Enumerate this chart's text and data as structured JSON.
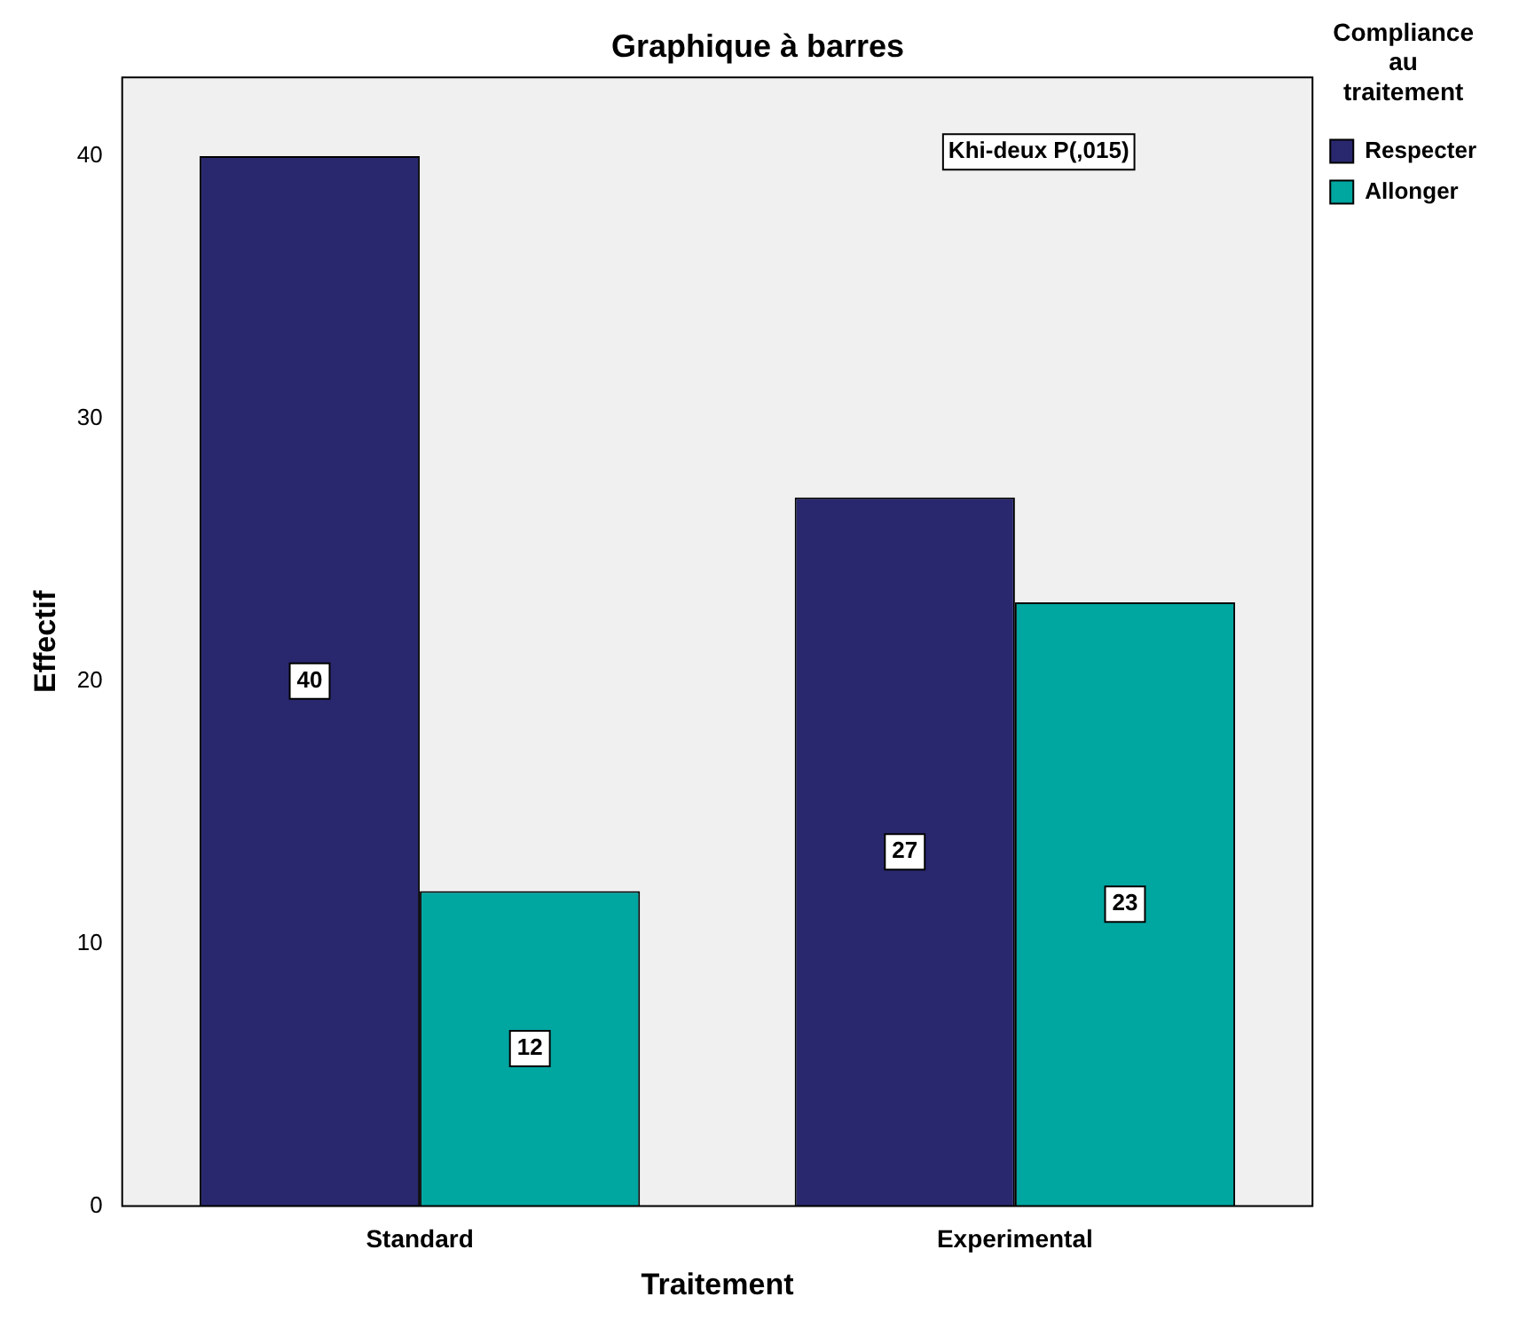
{
  "chart_data": {
    "type": "bar",
    "title": "Graphique à barres",
    "xlabel": "Traitement",
    "ylabel": "Effectif",
    "legend_title": "Compliance au traitement",
    "categories": [
      "Standard",
      "Experimental"
    ],
    "series": [
      {
        "name": "Respecter",
        "color": "#29286e",
        "values": [
          40,
          27
        ]
      },
      {
        "name": "Allonger",
        "color": "#00a6a0",
        "values": [
          12,
          23
        ]
      }
    ],
    "ylim": [
      0,
      43
    ],
    "yticks": [
      0,
      10,
      20,
      30,
      40
    ],
    "grid": false,
    "legend": "top right",
    "data_labels": true,
    "annotations": [
      "Khi-deux P(,015)"
    ]
  }
}
